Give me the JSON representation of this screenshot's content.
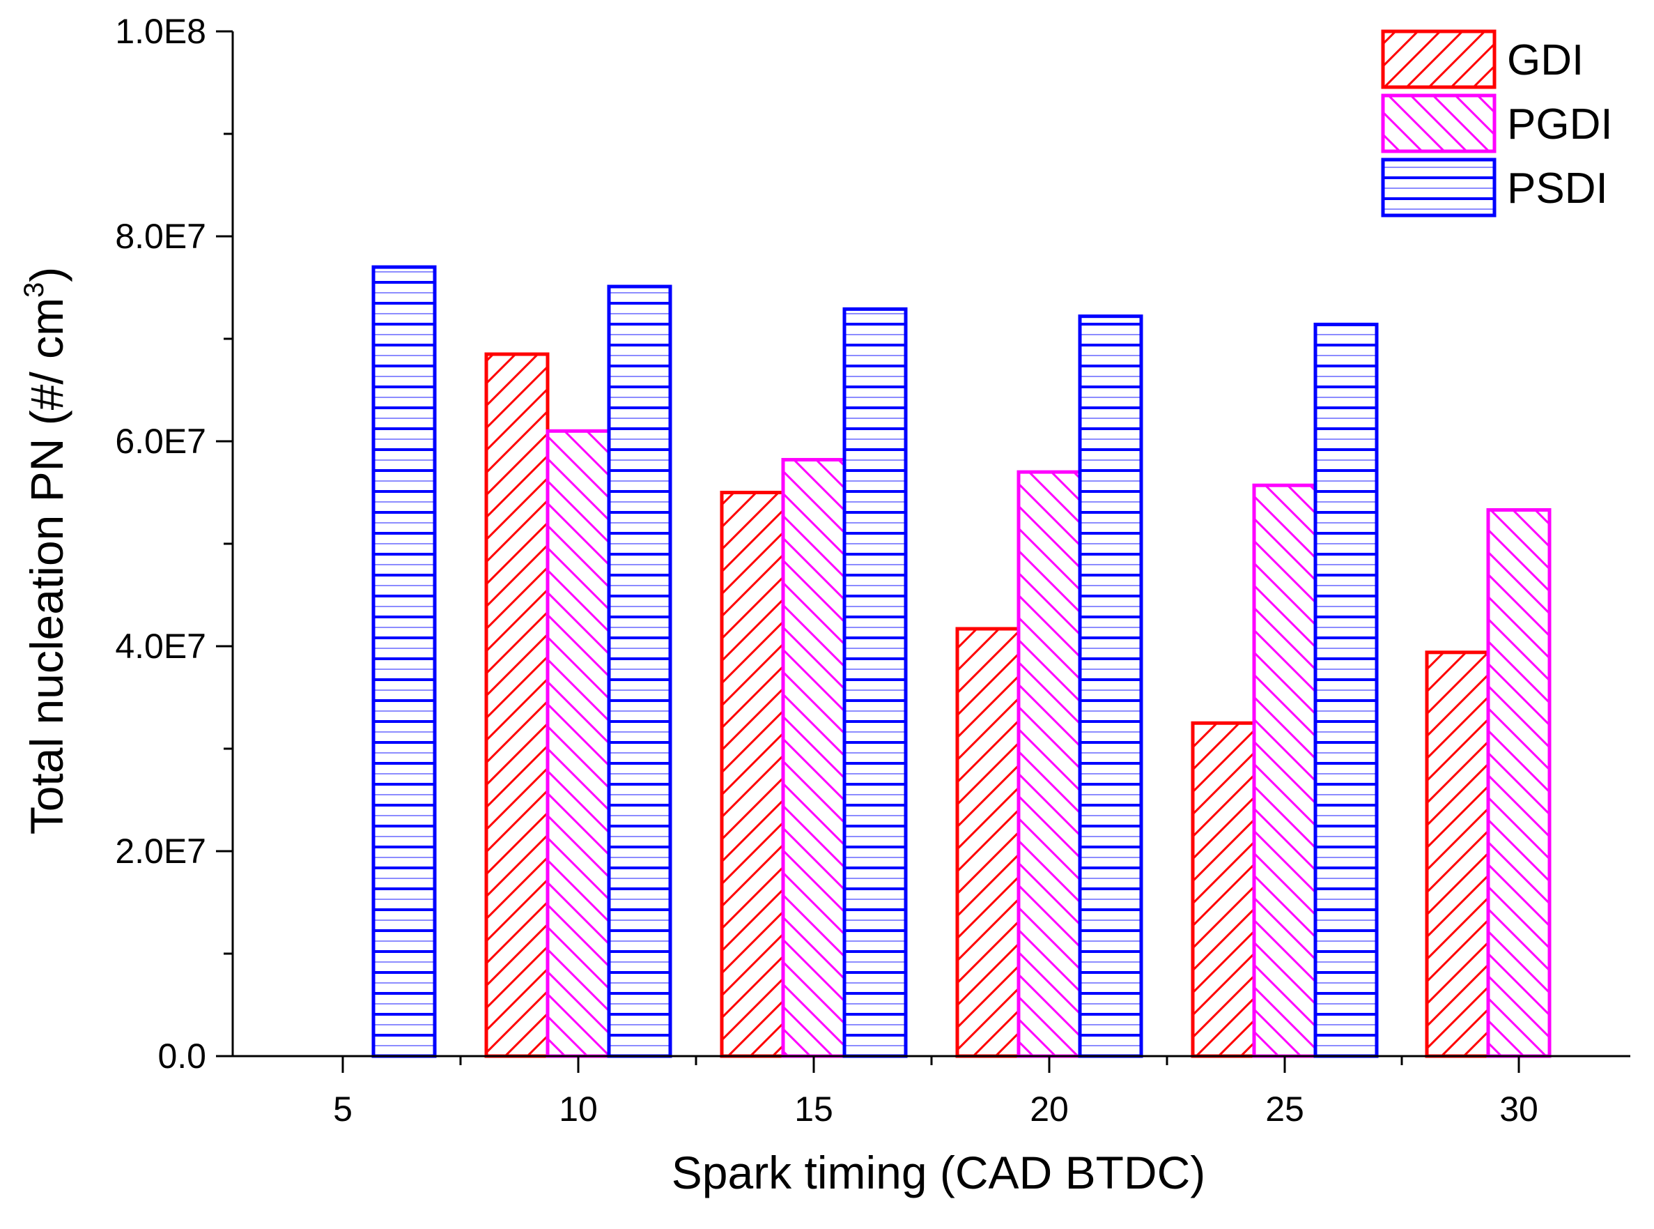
{
  "chart_data": {
    "type": "bar",
    "title": "",
    "xlabel": "Spark timing (CAD BTDC)",
    "ylabel": "Total nucleation PN (#/ cm",
    "ylabel_superscript": "3",
    "ylabel_suffix": ")",
    "categories": [
      "5",
      "10",
      "15",
      "20",
      "25",
      "30"
    ],
    "ylim": [
      0,
      100000000
    ],
    "yticks": [
      {
        "value": 0,
        "label": "0.0"
      },
      {
        "value": 20000000,
        "label": "2.0E7"
      },
      {
        "value": 40000000,
        "label": "4.0E7"
      },
      {
        "value": 60000000,
        "label": "6.0E7"
      },
      {
        "value": 80000000,
        "label": "8.0E7"
      },
      {
        "value": 100000000,
        "label": "1.0E8"
      }
    ],
    "series": [
      {
        "name": "GDI",
        "color": "#ff0000",
        "pattern": "diagonal-up",
        "values": [
          null,
          68500000,
          55000000,
          41700000,
          32500000,
          39400000
        ]
      },
      {
        "name": "PGDI",
        "color": "#ff00ff",
        "pattern": "diagonal-down",
        "values": [
          null,
          61000000,
          58200000,
          57000000,
          55700000,
          53300000
        ]
      },
      {
        "name": "PSDI",
        "color": "#0000ff",
        "pattern": "horizontal",
        "values": [
          77000000,
          75100000,
          72900000,
          72200000,
          71400000,
          null
        ]
      }
    ],
    "legend": {
      "position": "top-right"
    },
    "grid": false
  }
}
